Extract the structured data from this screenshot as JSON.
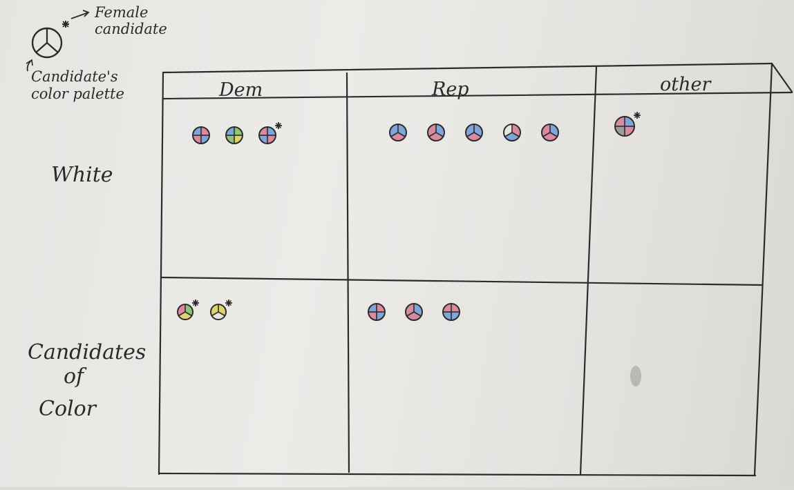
{
  "legend": {
    "female_label_line1": "Female",
    "female_label_line2": "candidate",
    "palette_label_line1": "Candidate's",
    "palette_label_line2": "color palette"
  },
  "columns": [
    "Dem",
    "Rep",
    "other"
  ],
  "rows": [
    {
      "label_lines": [
        "White"
      ]
    },
    {
      "label_lines": [
        "Candidates",
        "of",
        "Color"
      ]
    }
  ],
  "cells": {
    "white_dem": [
      {
        "female": false,
        "colors": [
          "#d98aa0",
          "#7ea6d8",
          "#d98aa0",
          "#7ea6d8"
        ]
      },
      {
        "female": false,
        "colors": [
          "#8cc47a",
          "#e0d36a",
          "#8cc47a",
          "#7ea6d8"
        ]
      },
      {
        "female": true,
        "colors": [
          "#7ea6d8",
          "#d98aa0",
          "#7ea6d8",
          "#d98aa0"
        ]
      }
    ],
    "white_rep": [
      {
        "female": false,
        "colors": [
          "#7ea6d8",
          "#d98aa0",
          "#7ea6d8"
        ]
      },
      {
        "female": false,
        "colors": [
          "#7ea6d8",
          "#d98aa0",
          "#d98aa0"
        ]
      },
      {
        "female": false,
        "colors": [
          "#7ea6d8",
          "#d98aa0",
          "#7ea6d8"
        ]
      },
      {
        "female": false,
        "colors": [
          "#d98aa0",
          "#7ea6d8",
          "#e8e6e2"
        ]
      },
      {
        "female": false,
        "colors": [
          "#7ea6d8",
          "#d98aa0",
          "#d98aa0"
        ]
      }
    ],
    "white_other": [
      {
        "female": true,
        "colors": [
          "#7ea6d8",
          "#d98aa0",
          "#9c9c9c",
          "#d98aa0"
        ]
      }
    ],
    "color_dem": [
      {
        "female": true,
        "colors": [
          "#8cc47a",
          "#e0d36a",
          "#d98aa0"
        ]
      },
      {
        "female": true,
        "colors": [
          "#e0d36a",
          "#e8e6e2",
          "#e0d36a"
        ]
      }
    ],
    "color_rep": [
      {
        "female": false,
        "colors": [
          "#d98aa0",
          "#7ea6d8",
          "#d98aa0",
          "#7ea6d8"
        ]
      },
      {
        "female": false,
        "colors": [
          "#7ea6d8",
          "#d98aa0",
          "#d98aa0"
        ]
      },
      {
        "female": false,
        "colors": [
          "#d98aa0",
          "#7ea6d8",
          "#7ea6d8",
          "#d98aa0"
        ]
      }
    ],
    "color_other": []
  }
}
